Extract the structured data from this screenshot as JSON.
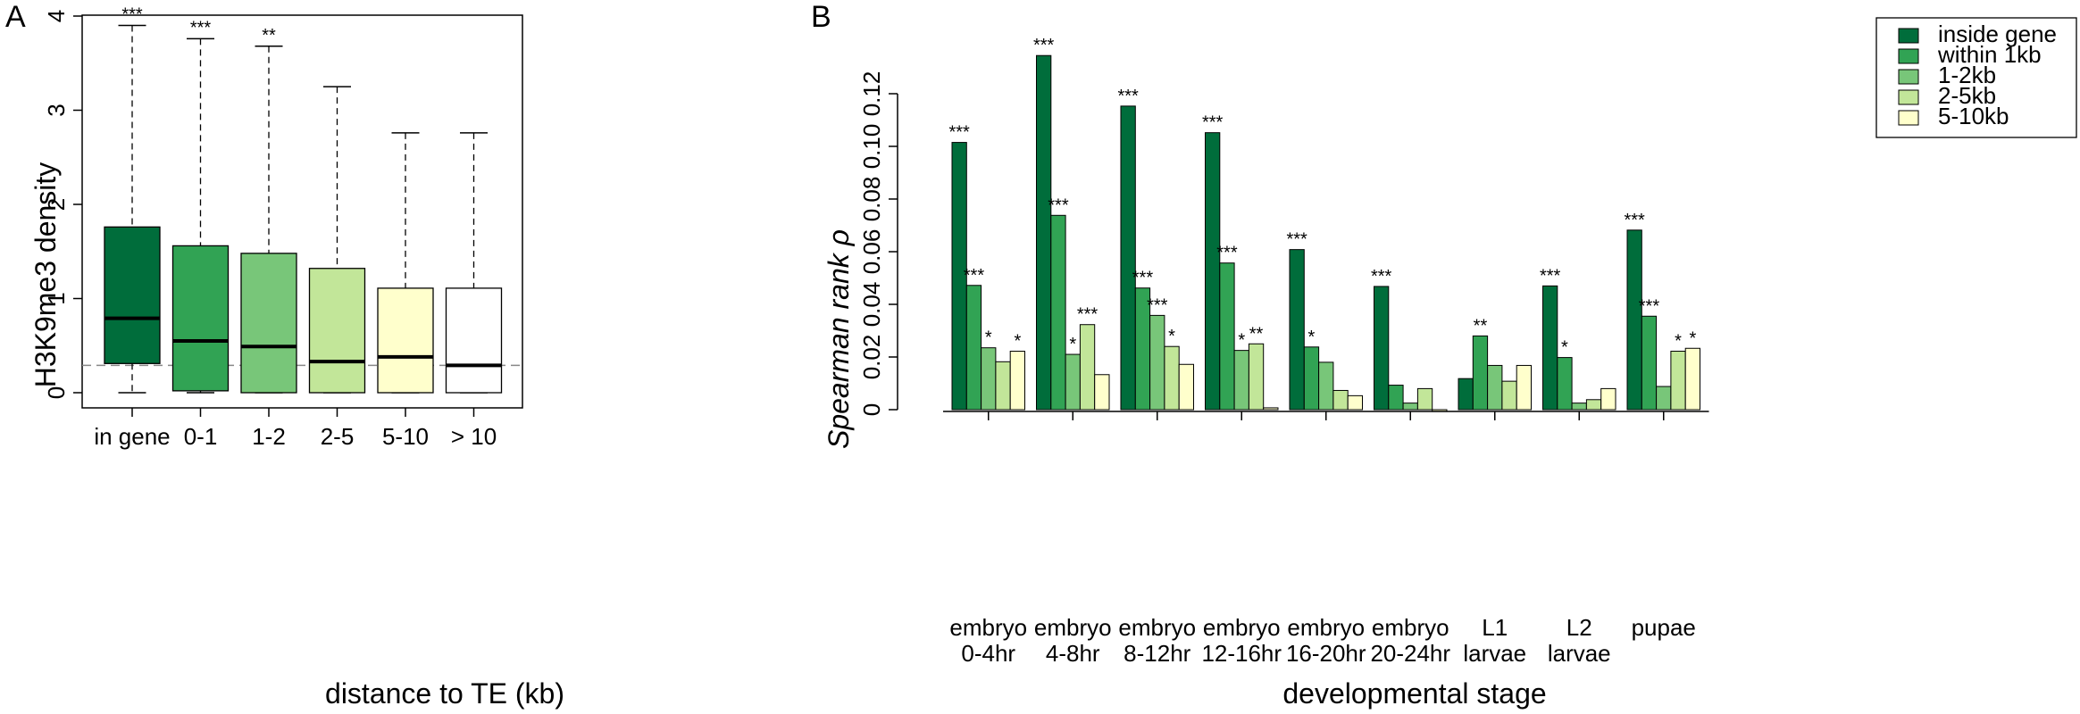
{
  "chart_data": [
    {
      "type": "box",
      "panel_label": "A",
      "xlabel": "distance to TE (kb)",
      "ylabel": "H3K9me3 density",
      "ylim": [
        0,
        4
      ],
      "yticks": [
        "0",
        "1",
        "2",
        "3",
        "4"
      ],
      "reference_line": 0.29,
      "boxes": [
        {
          "label": "in gene",
          "min": 0.0,
          "q1": 0.31,
          "median": 0.79,
          "q3": 1.76,
          "max": 3.9,
          "color": "#006d3b",
          "sig": "***"
        },
        {
          "label": "0-1",
          "min": 0.0,
          "q1": 0.02,
          "median": 0.55,
          "q3": 1.56,
          "max": 3.76,
          "color": "#31a354",
          "sig": "***"
        },
        {
          "label": "1-2",
          "min": 0.0,
          "q1": 0.0,
          "median": 0.49,
          "q3": 1.48,
          "max": 3.68,
          "color": "#78c679",
          "sig": "**"
        },
        {
          "label": "2-5",
          "min": 0.0,
          "q1": 0.0,
          "median": 0.33,
          "q3": 1.32,
          "max": 3.25,
          "color": "#c2e699",
          "sig": ""
        },
        {
          "label": "5-10",
          "min": 0.0,
          "q1": 0.0,
          "median": 0.38,
          "q3": 1.11,
          "max": 2.76,
          "color": "#ffffcc",
          "sig": ""
        },
        {
          "label": "> 10",
          "min": 0.0,
          "q1": 0.0,
          "median": 0.29,
          "q3": 1.11,
          "max": 2.76,
          "color": "#ffffff",
          "sig": ""
        }
      ]
    },
    {
      "type": "bar",
      "panel_label": "B",
      "xlabel": "developmental stage",
      "ylabel": "Spearman rank ρ",
      "ylim": [
        0,
        0.13
      ],
      "yticks": [
        "0",
        "0.02",
        "0.04",
        "0.06",
        "0.08",
        "0.10",
        "0.12"
      ],
      "legend_position": "top-right",
      "categories": [
        [
          "embryo",
          "0-4hr"
        ],
        [
          "embryo",
          "4-8hr"
        ],
        [
          "embryo",
          "8-12hr"
        ],
        [
          "embryo",
          "12-16hr"
        ],
        [
          "embryo",
          "16-20hr"
        ],
        [
          "embryo",
          "20-24hr"
        ],
        [
          "L1",
          "larvae"
        ],
        [
          "L2",
          "larvae"
        ],
        [
          "pupae",
          ""
        ]
      ],
      "series": [
        {
          "name": "inside gene",
          "color": "#006d3b",
          "values": [
            0.1015,
            0.1345,
            0.1153,
            0.1052,
            0.0608,
            0.0468,
            0.0118,
            0.047,
            0.0682
          ],
          "sig": [
            "***",
            "***",
            "***",
            "***",
            "***",
            "***",
            "",
            "***",
            "***"
          ]
        },
        {
          "name": "within 1kb",
          "color": "#31a354",
          "values": [
            0.0472,
            0.0738,
            0.0462,
            0.0557,
            0.0238,
            0.0093,
            0.028,
            0.0198,
            0.0355
          ],
          "sig": [
            "***",
            "***",
            "***",
            "***",
            "*",
            "",
            "**",
            "*",
            "***"
          ]
        },
        {
          "name": "1-2kb",
          "color": "#78c679",
          "values": [
            0.0235,
            0.021,
            0.0358,
            0.0225,
            0.018,
            0.0025,
            0.0168,
            0.0025,
            0.0088
          ],
          "sig": [
            "*",
            "*",
            "***",
            "*",
            "",
            "",
            "",
            "",
            ""
          ]
        },
        {
          "name": "2-5kb",
          "color": "#c2e699",
          "values": [
            0.0182,
            0.0323,
            0.024,
            0.025,
            0.0073,
            0.008,
            0.0108,
            0.0038,
            0.0222
          ],
          "sig": [
            "",
            "***",
            "*",
            "**",
            "",
            "",
            "",
            "",
            "*"
          ]
        },
        {
          "name": "5-10kb",
          "color": "#ffffcc",
          "values": [
            0.0222,
            0.0133,
            0.0172,
            0.0007,
            0.0053,
            -0.0007,
            0.0168,
            0.008,
            0.0233
          ],
          "sig": [
            "*",
            "",
            "",
            "",
            "",
            "",
            "",
            "",
            "*"
          ]
        }
      ]
    }
  ]
}
